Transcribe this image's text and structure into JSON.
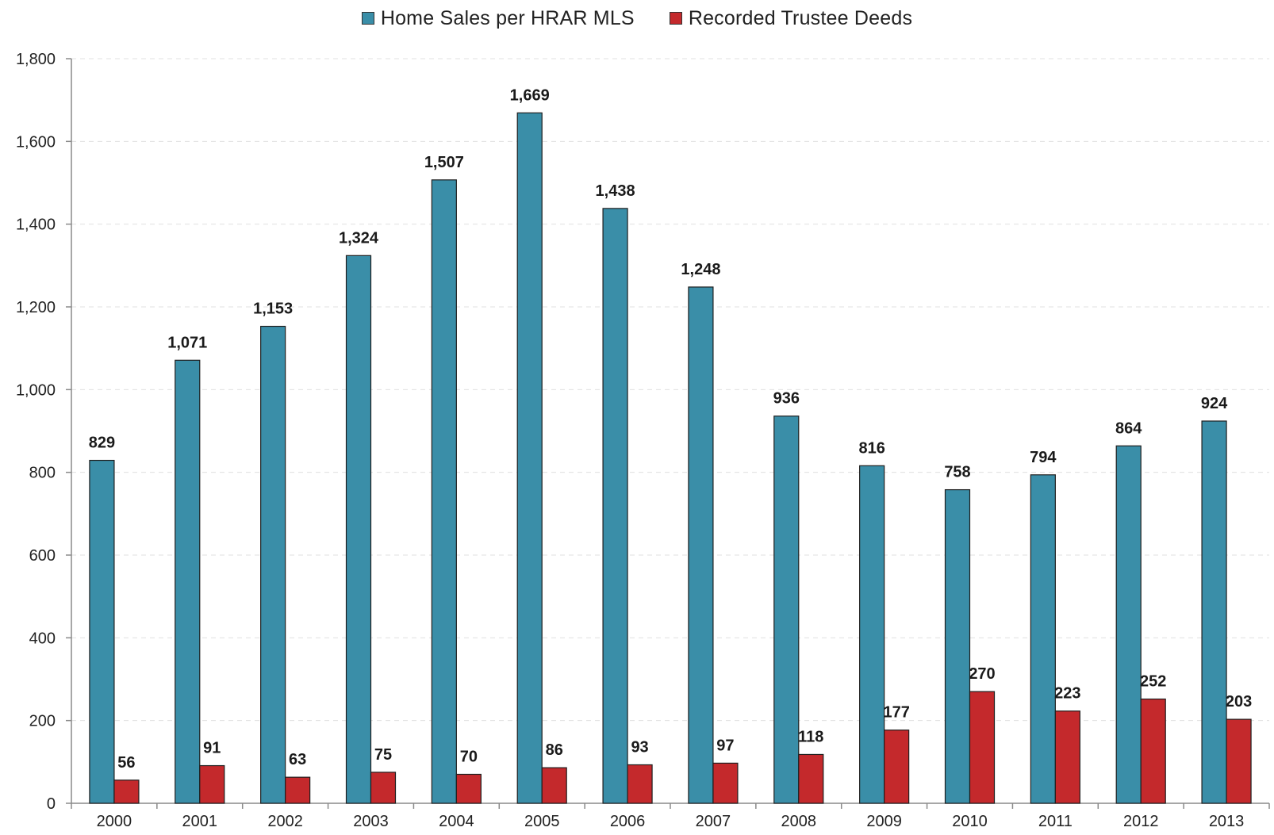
{
  "chart_data": {
    "type": "bar",
    "categories": [
      "2000",
      "2001",
      "2002",
      "2003",
      "2004",
      "2005",
      "2006",
      "2007",
      "2008",
      "2009",
      "2010",
      "2011",
      "2012",
      "2013"
    ],
    "series": [
      {
        "name": "Home Sales per HRAR MLS",
        "color": "#3a8ea8",
        "values": [
          829,
          1071,
          1153,
          1324,
          1507,
          1669,
          1438,
          1248,
          936,
          816,
          758,
          794,
          864,
          924
        ],
        "labels": [
          "829",
          "1,071",
          "1,153",
          "1,324",
          "1,507",
          "1,669",
          "1,438",
          "1,248",
          "936",
          "816",
          "758",
          "794",
          "864",
          "924"
        ]
      },
      {
        "name": "Recorded Trustee Deeds",
        "color": "#c4292c",
        "values": [
          56,
          91,
          63,
          75,
          70,
          86,
          93,
          97,
          118,
          177,
          270,
          223,
          252,
          203
        ],
        "labels": [
          "56",
          "91",
          "63",
          "75",
          "70",
          "86",
          "93",
          "97",
          "118",
          "177",
          "270",
          "223",
          "252",
          "203"
        ]
      }
    ],
    "ylim": [
      0,
      1800
    ],
    "yticks": [
      0,
      200,
      400,
      600,
      800,
      1000,
      1200,
      1400,
      1600,
      1800
    ],
    "ytick_labels": [
      "0",
      "200",
      "400",
      "600",
      "800",
      "1,000",
      "1,200",
      "1,400",
      "1,600",
      "1,800"
    ],
    "grid": true,
    "legend": "top-center"
  }
}
